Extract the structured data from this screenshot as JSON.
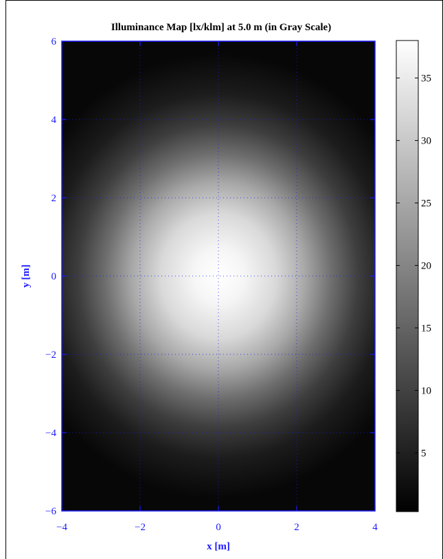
{
  "chart_data": {
    "type": "heatmap",
    "title": "Illuminance Map [lx/klm] at 5.0 m (in Gray Scale)",
    "xlabel": "x [m]",
    "ylabel": "y [m]",
    "xlim": [
      -4,
      4
    ],
    "ylim": [
      -6,
      6
    ],
    "x_ticks": [
      -4,
      -2,
      0,
      2,
      4
    ],
    "y_ticks": [
      -6,
      -4,
      -2,
      0,
      2,
      4,
      6
    ],
    "grid": true,
    "colormap": "gray",
    "peak": {
      "x": 0,
      "y": 0,
      "value": 38
    },
    "colorbar": {
      "range": [
        0.3,
        38
      ],
      "ticks": [
        5,
        10,
        15,
        20,
        25,
        30,
        35
      ]
    }
  },
  "colors": {
    "axis": "#1a1aff",
    "frame": "#000000"
  }
}
